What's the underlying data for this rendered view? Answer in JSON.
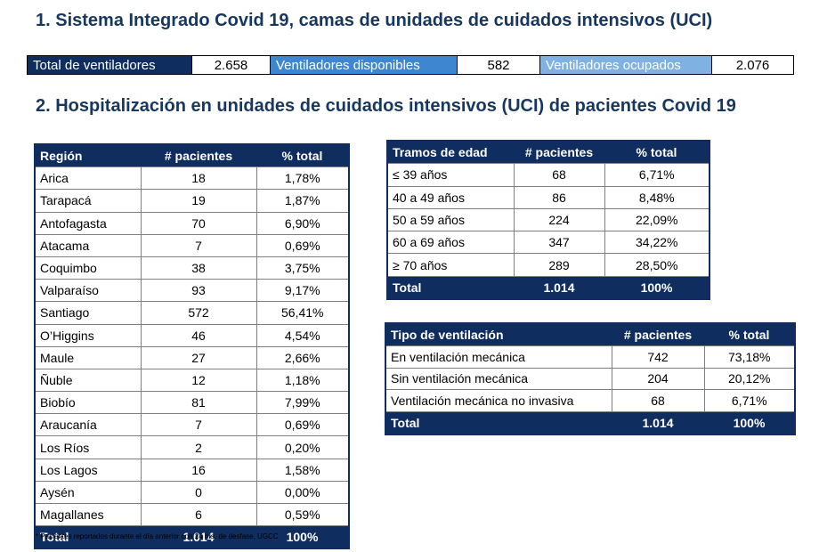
{
  "section1": {
    "title": "1. Sistema Integrado Covid 19, camas de unidades de cuidados intensivos (UCI)"
  },
  "summary": {
    "total_label": "Total de ventiladores",
    "total_value": "2.658",
    "available_label": "Ventiladores disponibles",
    "available_value": "582",
    "occupied_label": "Ventiladores ocupados",
    "occupied_value": "2.076"
  },
  "section2": {
    "title": "2. Hospitalización en unidades de cuidados intensivos (UCI) de pacientes Covid 19"
  },
  "region_table": {
    "headers": [
      "Región",
      "# pacientes",
      "% total"
    ],
    "rows": [
      [
        "Arica",
        "18",
        "1,78%"
      ],
      [
        "Tarapacá",
        "19",
        "1,87%"
      ],
      [
        "Antofagasta",
        "70",
        "6,90%"
      ],
      [
        "Atacama",
        "7",
        "0,69%"
      ],
      [
        "Coquimbo",
        "38",
        "3,75%"
      ],
      [
        "Valparaíso",
        "93",
        "9,17%"
      ],
      [
        "Santiago",
        "572",
        "56,41%"
      ],
      [
        "O’Higgins",
        "46",
        "4,54%"
      ],
      [
        "Maule",
        "27",
        "2,66%"
      ],
      [
        "Ñuble",
        "12",
        "1,18%"
      ],
      [
        "Biobío",
        "81",
        "7,99%"
      ],
      [
        "Araucanía",
        "7",
        "0,69%"
      ],
      [
        "Los Ríos",
        "2",
        "0,20%"
      ],
      [
        "Los Lagos",
        "16",
        "1,58%"
      ],
      [
        "Aysén",
        "0",
        "0,00%"
      ],
      [
        "Magallanes",
        "6",
        "0,59%"
      ]
    ],
    "total": [
      "Total",
      "1.014",
      "100%"
    ]
  },
  "age_table": {
    "headers": [
      "Tramos de edad",
      "# pacientes",
      "% total"
    ],
    "rows": [
      [
        "≤ 39 años",
        "68",
        "6,71%"
      ],
      [
        "40 a 49 años",
        "86",
        "8,48%"
      ],
      [
        "50 a 59 años",
        "224",
        "22,09%"
      ],
      [
        "60 a 69 años",
        "347",
        "34,22%"
      ],
      [
        "≥ 70 años",
        "289",
        "28,50%"
      ]
    ],
    "total": [
      "Total",
      "1.014",
      "100%"
    ]
  },
  "vent_table": {
    "headers": [
      "Tipo de ventilación",
      "# pacientes",
      "% total"
    ],
    "rows": [
      [
        "En ventilación mecánica",
        "742",
        "73,18%"
      ],
      [
        "Sin ventilación mecánica",
        "204",
        "20,12%"
      ],
      [
        "Ventilación mecánica no invasiva",
        "68",
        "6,71%"
      ]
    ],
    "total": [
      "Total",
      "1.014",
      "100%"
    ]
  },
  "footnote": "* Pacientes reportados durante el día anterior con 24 hrs. de desfase, UGCC"
}
